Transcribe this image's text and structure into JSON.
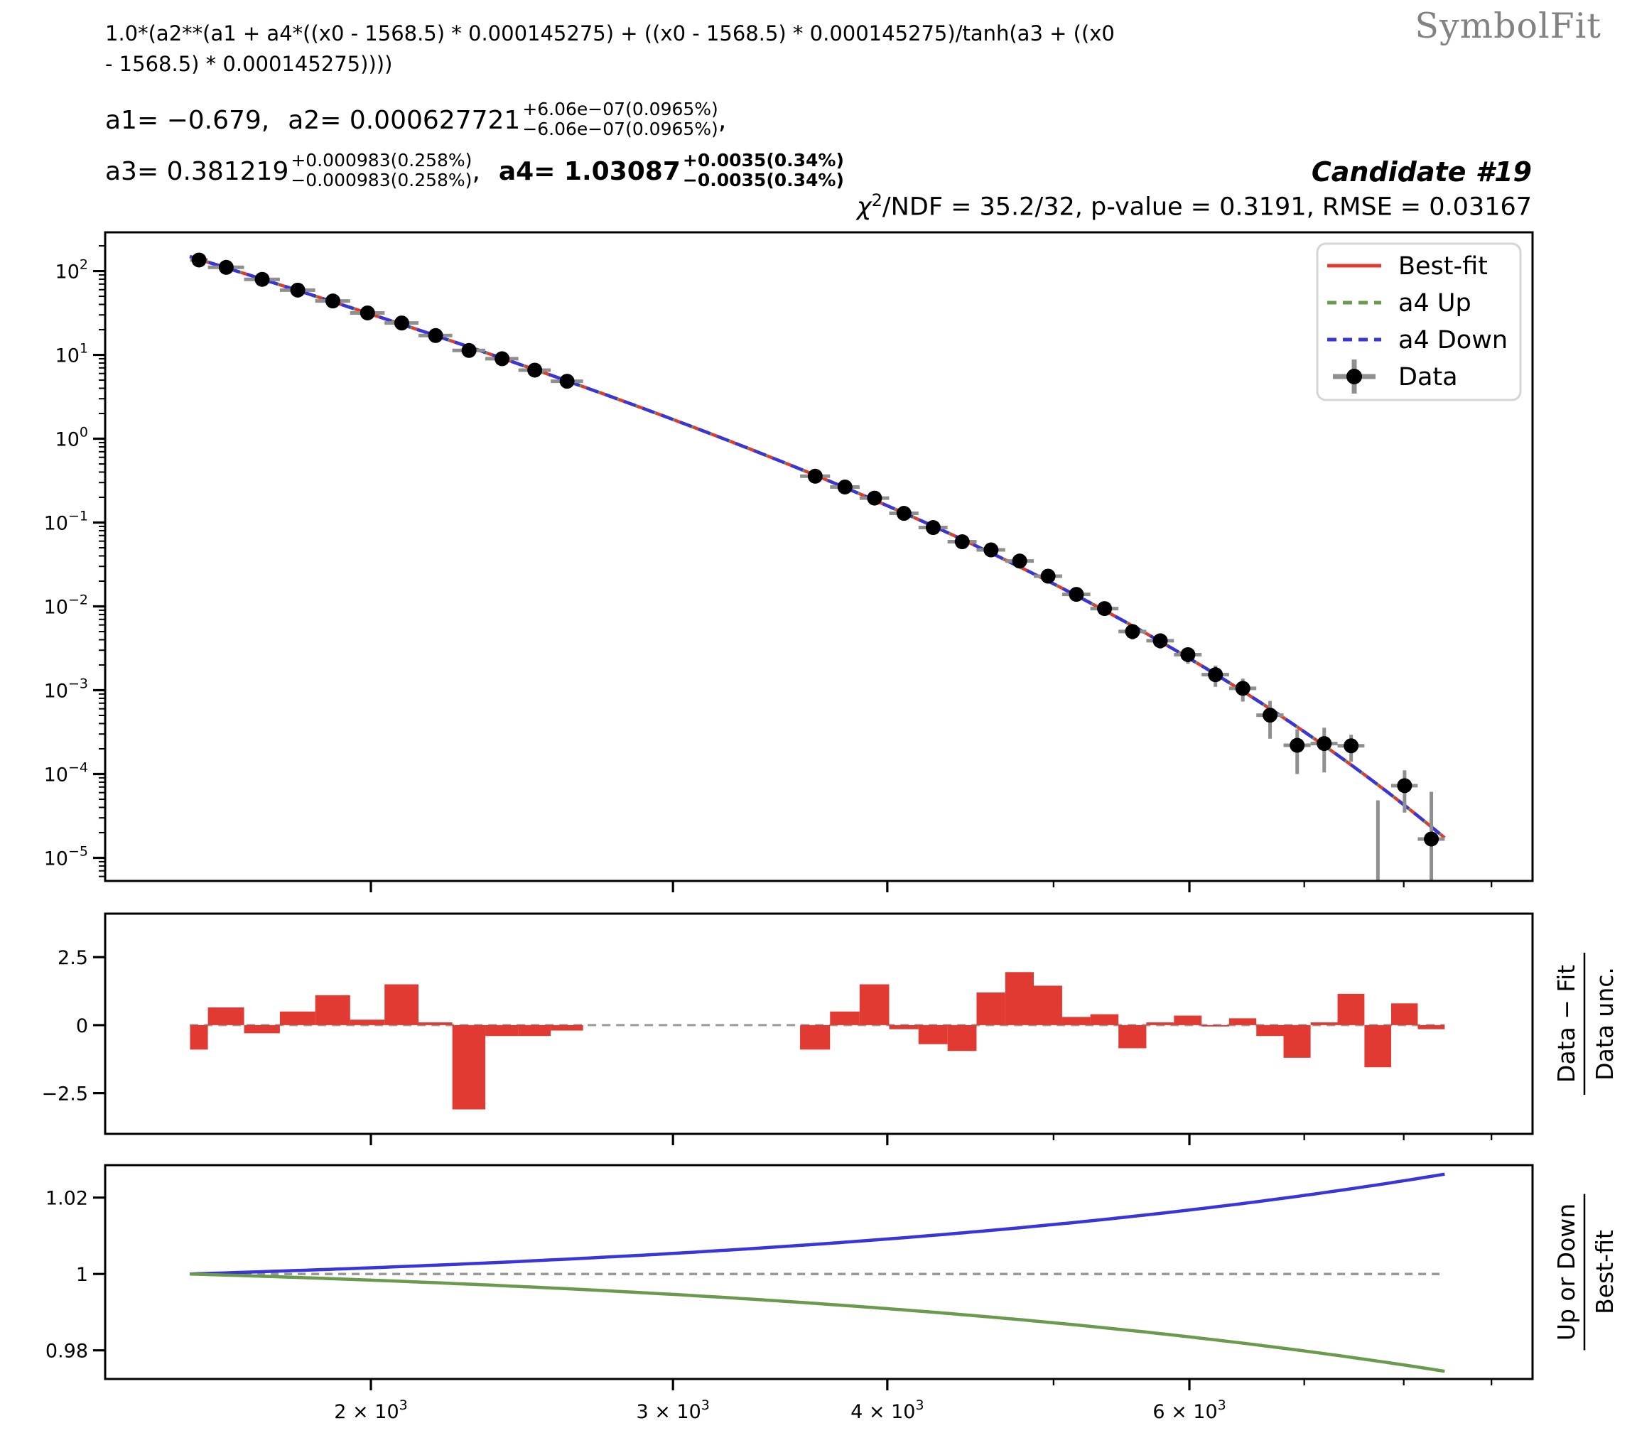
{
  "header": {
    "formula_line1": "1.0*(a2**(a1 + a4*((x0 - 1568.5) * 0.000145275) + ((x0 - 1568.5) * 0.000145275)/tanh(a3 + ((x0",
    "formula_line2": "- 1568.5) * 0.000145275))))",
    "logo": "SymbolFit",
    "candidate": "Candidate #19",
    "stats_chi": "χ",
    "stats_sup": "2",
    "stats_rest": "/NDF = 35.2/32, p-value = 0.3191, RMSE = 0.03167"
  },
  "params": {
    "a1": {
      "name": "a1",
      "eq": " = −0.679,"
    },
    "a2": {
      "name": "a2",
      "eq": " = 0.000627721",
      "up": "+6.06e−07(0.0965%)",
      "down": "−6.06e−07(0.0965%)",
      "post": ","
    },
    "a3": {
      "name": "a3",
      "eq": " = 0.381219",
      "up": "+0.000983(0.258%)",
      "down": "−0.000983(0.258%)",
      "post": ","
    },
    "a4": {
      "name": "a4",
      "eq": " = 1.03087",
      "up": "+0.0035(0.34%)",
      "down": "−0.0035(0.34%)"
    }
  },
  "legend": [
    {
      "label": "Best-fit",
      "style": "solid",
      "color": "#e13a32"
    },
    {
      "label": "a4 Up",
      "style": "dashed",
      "color": "#6a9a4d"
    },
    {
      "label": "a4 Down",
      "style": "dashed",
      "color": "#3a35d8"
    },
    {
      "label": "Data",
      "style": "marker",
      "color": "#000000"
    }
  ],
  "axes_labels": {
    "mid_num": "Data − Fit",
    "mid_den": "Data unc.",
    "bot_num": "Up or Down",
    "bot_den": "Best-fit"
  },
  "chart_data": {
    "type": "line",
    "title": "SymbolFit candidate function fit to binned spectrum data",
    "x_scale": "log",
    "xlim": [
      1400,
      9510
    ],
    "x_major_ticks": [
      {
        "value": 2000,
        "mantissa": "2"
      },
      {
        "value": 3000,
        "mantissa": "3"
      },
      {
        "value": 4000,
        "mantissa": "4"
      },
      {
        "value": 6000,
        "mantissa": "6"
      }
    ],
    "x_minor_ticks": [
      5000,
      7000,
      8000,
      9000
    ],
    "main_panel": {
      "y_scale": "log",
      "ylim": [
        5.3e-06,
        290
      ],
      "y_major_exponents": [
        2,
        1,
        0,
        -1,
        -2,
        -3,
        -4,
        -5
      ],
      "fit_range": [
        1568.5,
        8451.5
      ],
      "fit_function": "1.0*(a2**(a1 + a4*z + z/tanh(a3 + z))) with z = (x0 - 1568.5)*0.000145275",
      "parameters": {
        "a1": -0.679,
        "a2": 0.000627721,
        "a3": 0.381219,
        "a4": 1.03087,
        "a4_unc": 0.0035
      },
      "bin_edges_left": [
        1569,
        1607,
        1687,
        1770,
        1856,
        1945,
        2037,
        2132,
        2231,
        2332,
        2438,
        2546,
        2659
      ],
      "bin_edges_right": [
        3558,
        3704,
        3854,
        4010,
        4171,
        4337,
        4509,
        4686,
        4869,
        5058,
        5253,
        5455,
        5663,
        5877,
        6099,
        6328,
        6564,
        6808,
        7060,
        7320,
        7589,
        7866,
        8152,
        8452
      ],
      "unc_rel_left": [
        0.02,
        0.02,
        0.02,
        0.02,
        0.02,
        0.022,
        0.025,
        0.028,
        0.03,
        0.035,
        0.04,
        0.045
      ],
      "unc_rel_right": [
        0.03,
        0.035,
        0.04,
        0.05,
        0.055,
        0.065,
        0.075,
        0.09,
        0.1,
        0.12,
        0.14,
        0.17,
        0.2,
        0.24,
        0.28,
        0.33,
        0.4,
        0.33,
        0.58,
        0.6,
        0.63,
        0.9,
        1.9
      ]
    },
    "residual_panel": {
      "ylim": [
        -4.0,
        4.1
      ],
      "y_ticks": [
        "2.5",
        "0",
        "−2.5"
      ],
      "y_tick_values": [
        2.5,
        0,
        -2.5
      ],
      "values_left": [
        -0.9,
        0.65,
        -0.3,
        0.5,
        1.1,
        0.2,
        1.5,
        0.1,
        -3.1,
        -0.4,
        -0.4,
        -0.2
      ],
      "values_right": [
        -0.9,
        0.5,
        1.5,
        -0.15,
        -0.7,
        -0.95,
        1.2,
        1.95,
        1.45,
        0.3,
        0.4,
        -0.85,
        0.1,
        0.35,
        -0.05,
        0.25,
        -0.4,
        -1.2,
        0.1,
        1.15,
        -1.55,
        0.8,
        -0.15
      ]
    },
    "ratio_panel": {
      "ylim": [
        0.9725,
        1.0285
      ],
      "y_ticks": [
        "1.02",
        "1",
        "0.98"
      ],
      "y_tick_values": [
        1.02,
        1.0,
        0.98
      ],
      "up_curve_end": 0.9745,
      "down_curve_end": 1.0261
    },
    "colors": {
      "best_fit": "#e13a32",
      "a4_up": "#6a9a4d",
      "a4_down": "#3a35d8",
      "data_marker": "#000000",
      "error_bar": "#8f8f8f",
      "residual_bar": "#e13a32",
      "dashed_ref": "#999999",
      "spine": "#000000"
    }
  }
}
